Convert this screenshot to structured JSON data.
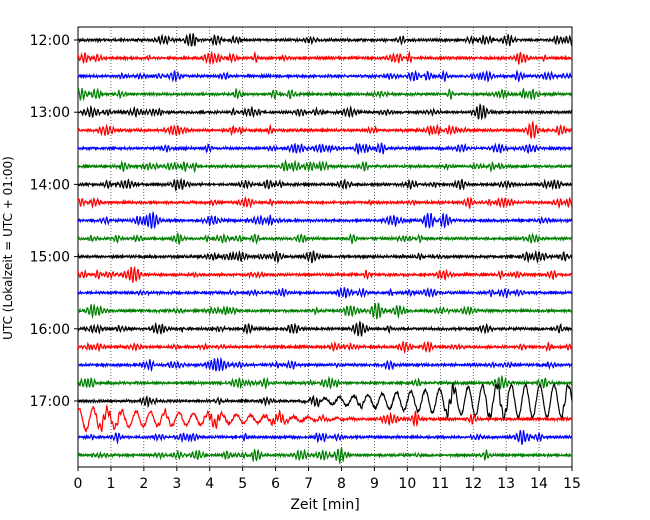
{
  "chart_data": {
    "type": "line",
    "title": "",
    "xlabel": "Zeit  [min]",
    "ylabel": "UTC (Lokalzeit = UTC + 01:00)",
    "xlim": [
      0,
      15
    ],
    "x_ticks": [
      0,
      1,
      2,
      3,
      4,
      5,
      6,
      7,
      8,
      9,
      10,
      11,
      12,
      13,
      14,
      15
    ],
    "x_tick_labels": [
      "0",
      "1",
      "2",
      "3",
      "4",
      "5",
      "6",
      "7",
      "8",
      "9",
      "10",
      "11",
      "12",
      "13",
      "14",
      "15"
    ],
    "y_tick_labels": [
      "12:00",
      "13:00",
      "14:00",
      "15:00",
      "16:00",
      "17:00"
    ],
    "trace_interval_minutes": 15,
    "traces_per_hour": 4,
    "trace_start_times": [
      "12:00",
      "12:15",
      "12:30",
      "12:45",
      "13:00",
      "13:15",
      "13:30",
      "13:45",
      "14:00",
      "14:15",
      "14:30",
      "14:45",
      "15:00",
      "15:15",
      "15:30",
      "15:45",
      "16:00",
      "16:15",
      "16:30",
      "16:45",
      "17:00",
      "17:15",
      "17:30",
      "17:45"
    ],
    "trace_colors": [
      "#000000",
      "#ff0000",
      "#0000ff",
      "#008000"
    ],
    "grid": "vertical-dotted",
    "notes_visible": "quiet background noise on all traces; larger oscillation at 17:00 trace from ~9 to 15 min and at 17:15 trace from 0 to ~8 min"
  }
}
